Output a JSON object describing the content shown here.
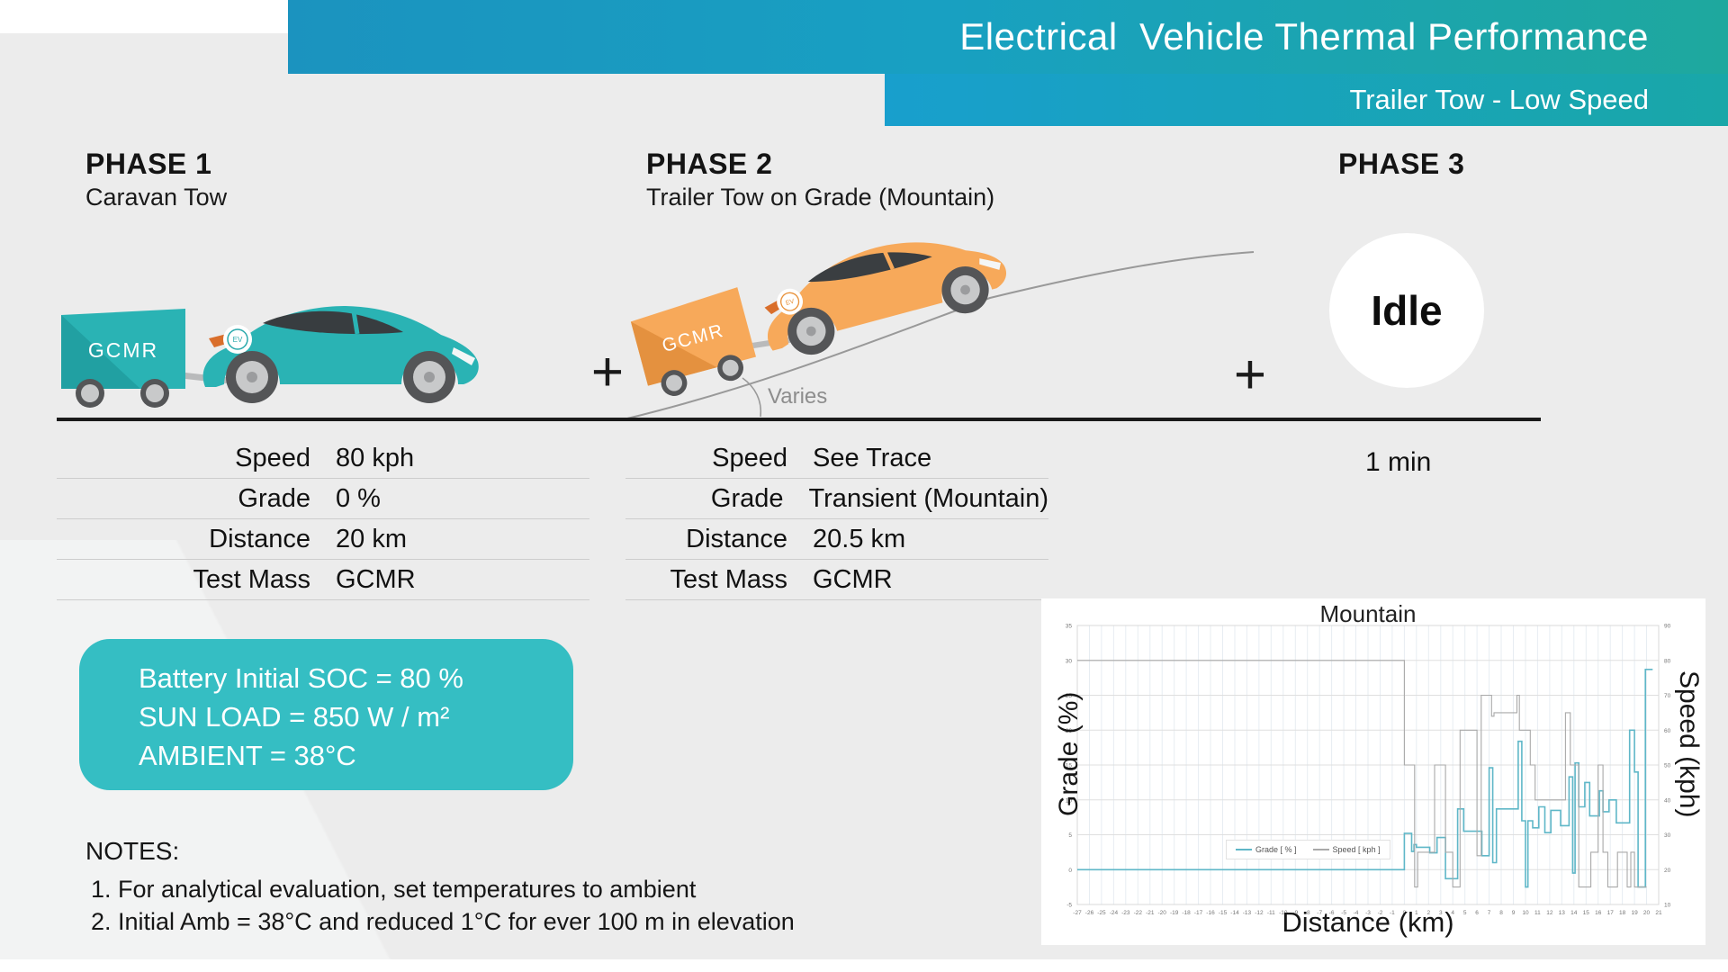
{
  "header": {
    "title": "Electrical  Vehicle Thermal Performance",
    "subtitle": "Trailer Tow - Low Speed"
  },
  "plus_sign": "+",
  "phases": [
    {
      "name": "PHASE 1",
      "subtitle": "Caravan Tow",
      "trailer_label": "GCMR",
      "specs": [
        {
          "label": "Speed",
          "value": "80 kph"
        },
        {
          "label": "Grade",
          "value": "0 %"
        },
        {
          "label": "Distance",
          "value": "20 km"
        },
        {
          "label": "Test Mass",
          "value": "GCMR"
        }
      ]
    },
    {
      "name": "PHASE 2",
      "subtitle": "Trailer Tow on Grade (Mountain)",
      "trailer_label": "GCMR",
      "grade_note": "Varies",
      "specs": [
        {
          "label": "Speed",
          "value": "See Trace"
        },
        {
          "label": "Grade",
          "value": "Transient (Mountain)"
        },
        {
          "label": "Distance",
          "value": "20.5 km"
        },
        {
          "label": "Test Mass",
          "value": "GCMR"
        }
      ]
    },
    {
      "name": "PHASE 3",
      "badge": "Idle",
      "duration": "1 min"
    }
  ],
  "info_box": {
    "lines": [
      "Battery Initial SOC = 80 %",
      "SUN LOAD = 850 W / m²",
      "AMBIENT = 38°C"
    ],
    "bg": "#35bec3"
  },
  "notes": {
    "title": "NOTES:",
    "items": [
      "For analytical evaluation, set temperatures to ambient",
      "Initial Amb = 38°C and reduced 1°C for ever 100 m in elevation"
    ]
  },
  "colors": {
    "car_teal": "#2ab3b4",
    "car_orange": "#f7a95a",
    "banner_blue": "#189fcd",
    "banner_teal": "#1ea89e",
    "info_teal": "#35bec3"
  },
  "chart_data": {
    "type": "line",
    "title": "Mountain",
    "xlabel": "Distance (km)",
    "ylabel_left": "Grade (%)",
    "ylabel_right": "Speed (kph)",
    "x_range": [
      -27,
      21
    ],
    "x_tick_step": 1,
    "y_left_range": [
      -5,
      35
    ],
    "y_left_tick_step": 5,
    "y_right_range": [
      10,
      90
    ],
    "y_right_tick_step": 10,
    "grid": true,
    "legend_position": "center-left",
    "series": [
      {
        "name": "Grade [ % ]",
        "axis": "left",
        "color": "#5fb7c8",
        "width": 1.6,
        "step_points": [
          [
            -27,
            0
          ],
          [
            0,
            5.2
          ],
          [
            0.6,
            2.6
          ],
          [
            0.8,
            3.6
          ],
          [
            1,
            3.2
          ],
          [
            2.1,
            2.4
          ],
          [
            2.7,
            4.6
          ],
          [
            3.4,
            -1.3
          ],
          [
            4.4,
            8.7
          ],
          [
            4.9,
            5.5
          ],
          [
            6.4,
            2
          ],
          [
            7,
            14.6
          ],
          [
            7.3,
            1
          ],
          [
            7.6,
            8.7
          ],
          [
            9.4,
            18.4
          ],
          [
            9.7,
            7
          ],
          [
            10,
            -2.5
          ],
          [
            10.2,
            7
          ],
          [
            10.6,
            6
          ],
          [
            11.1,
            9
          ],
          [
            11.6,
            5.3
          ],
          [
            12.1,
            8.5
          ],
          [
            12.9,
            6.3
          ],
          [
            13.6,
            13.3
          ],
          [
            13.9,
            -0.5
          ],
          [
            14.1,
            15.3
          ],
          [
            14.4,
            9
          ],
          [
            14.9,
            12.5
          ],
          [
            15.3,
            7.7
          ],
          [
            16.1,
            11.3
          ],
          [
            16.4,
            8.3
          ],
          [
            16.9,
            10
          ],
          [
            17.5,
            6.7
          ],
          [
            18.6,
            20
          ],
          [
            19,
            14
          ],
          [
            19.3,
            -2.5
          ],
          [
            19.9,
            28.7
          ],
          [
            20.5,
            28.7
          ]
        ]
      },
      {
        "name": "Speed [ kph ]",
        "axis": "right",
        "color": "#a9a9a9",
        "width": 1.1,
        "step_points": [
          [
            -27,
            80
          ],
          [
            0,
            50
          ],
          [
            0.85,
            15
          ],
          [
            1.1,
            25
          ],
          [
            2.5,
            50
          ],
          [
            3.4,
            25
          ],
          [
            4,
            15
          ],
          [
            4.6,
            60
          ],
          [
            6,
            24
          ],
          [
            6.35,
            70
          ],
          [
            7.2,
            64
          ],
          [
            7.4,
            65
          ],
          [
            9.3,
            70
          ],
          [
            9.5,
            60
          ],
          [
            10.4,
            50
          ],
          [
            10.8,
            40
          ],
          [
            13.3,
            65
          ],
          [
            13.7,
            50
          ],
          [
            14.4,
            15
          ],
          [
            15.4,
            25
          ],
          [
            16,
            50
          ],
          [
            16.4,
            25
          ],
          [
            16.8,
            15
          ],
          [
            17.6,
            25
          ],
          [
            18.4,
            15
          ],
          [
            18.7,
            25
          ],
          [
            19,
            15
          ],
          [
            20,
            15
          ]
        ]
      }
    ]
  }
}
